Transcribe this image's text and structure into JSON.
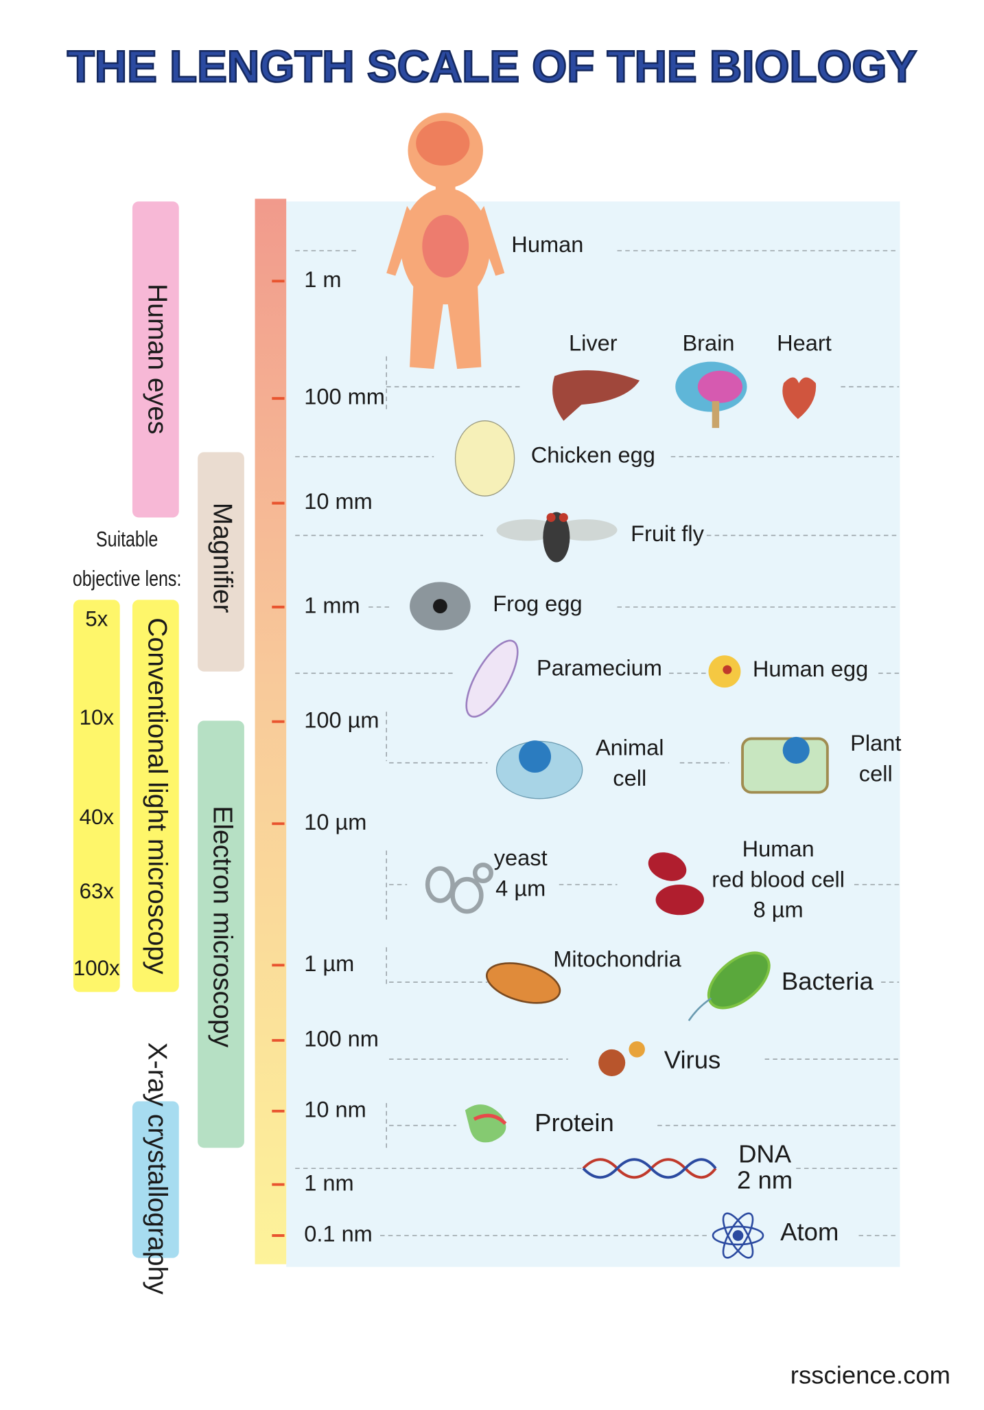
{
  "title": "THE LENGTH SCALE OF THE BIOLOGY",
  "scale_ticks": [
    "1 m",
    "100 mm",
    "10 mm",
    "1 mm",
    "100 µm",
    "10 µm",
    "1 µm",
    "100 nm",
    "10 nm",
    "1 nm",
    "0.1 nm"
  ],
  "methods": [
    "Human eyes",
    "Magnifier",
    "Electron microscopy",
    "Conventional light microscopy",
    "X-ray crystallography"
  ],
  "objective_lens": {
    "caption": [
      "Suitable",
      "objective lens:"
    ],
    "values": [
      "5x",
      "10x",
      "40x",
      "63x",
      "100x"
    ]
  },
  "items": [
    {
      "label": [
        "Human"
      ]
    },
    {
      "label": [
        "Liver"
      ]
    },
    {
      "label": [
        "Brain"
      ]
    },
    {
      "label": [
        "Heart"
      ]
    },
    {
      "label": [
        "Chicken egg"
      ]
    },
    {
      "label": [
        "Fruit fly"
      ]
    },
    {
      "label": [
        "Frog egg"
      ]
    },
    {
      "label": [
        "Paramecium"
      ]
    },
    {
      "label": [
        "Human egg"
      ]
    },
    {
      "label": [
        "Animal",
        "cell"
      ]
    },
    {
      "label": [
        "Plant",
        "cell"
      ]
    },
    {
      "label": [
        "yeast",
        "4 µm"
      ]
    },
    {
      "label": [
        "Human",
        "red blood cell",
        "8 µm"
      ]
    },
    {
      "label": [
        "Mitochondria"
      ]
    },
    {
      "label": [
        "Bacteria"
      ]
    },
    {
      "label": [
        "Virus"
      ]
    },
    {
      "label": [
        "Protein"
      ]
    },
    {
      "label": [
        "DNA",
        "2 nm"
      ]
    },
    {
      "label": [
        "Atom"
      ]
    }
  ],
  "footer": "rsscience.com"
}
